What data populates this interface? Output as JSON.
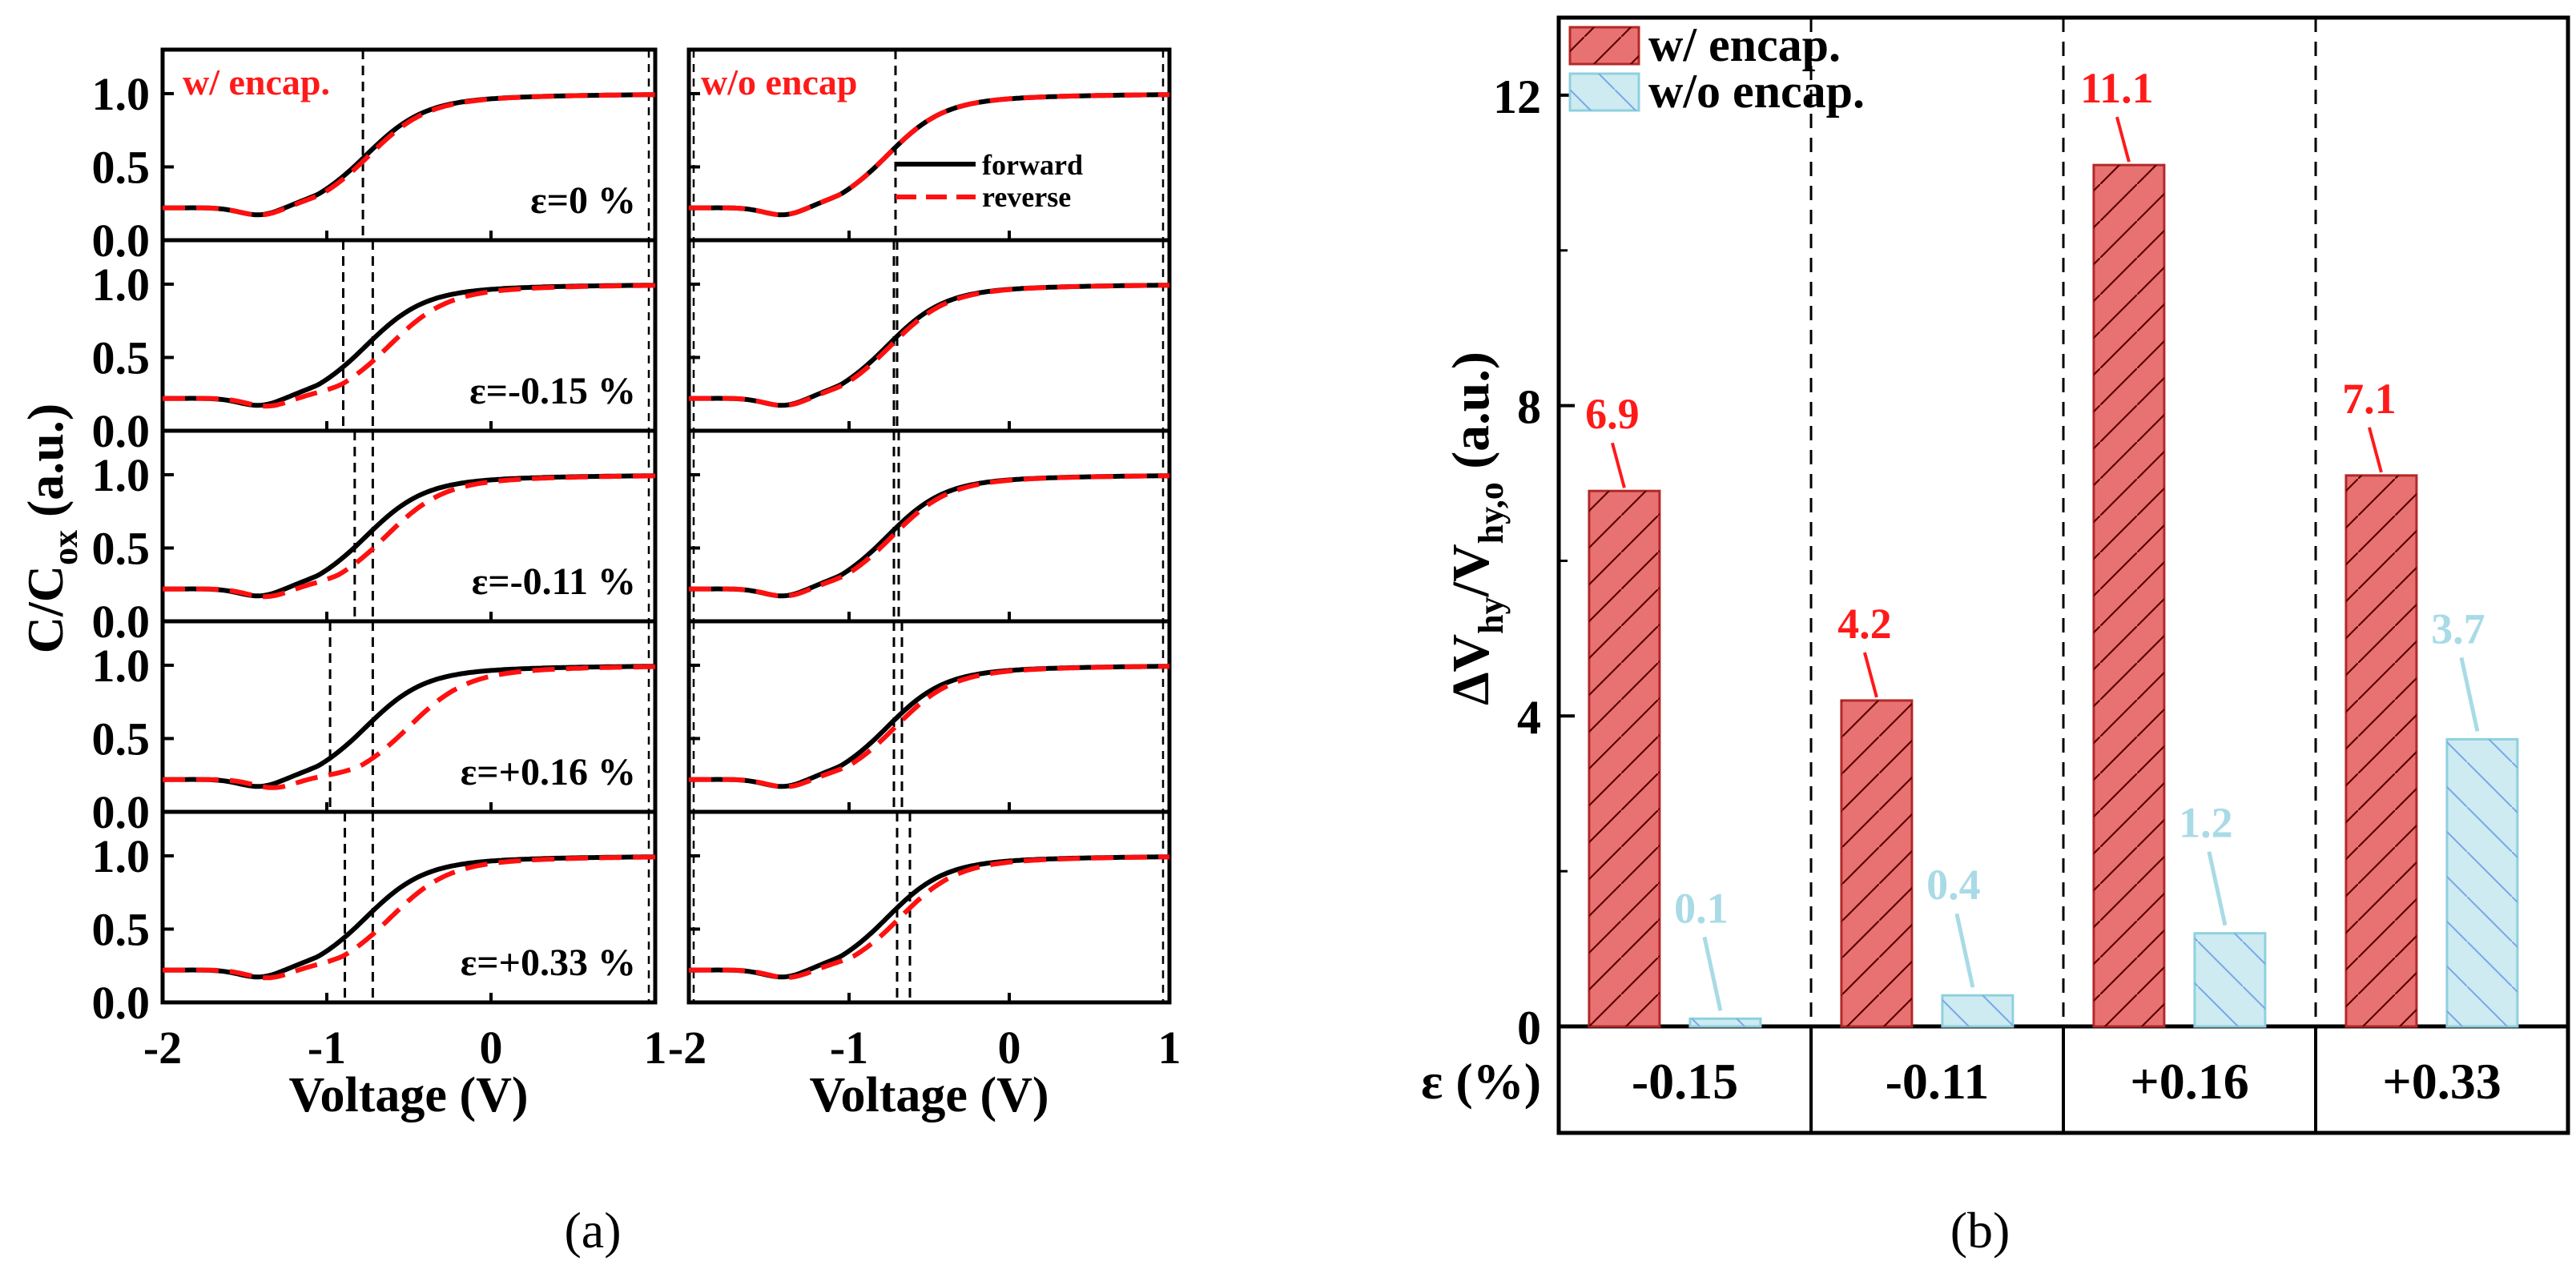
{
  "chart_data": [
    {
      "type": "line",
      "panel": "(a)",
      "ylabel": "C/C",
      "ylabel_sub": "ox",
      "ylabel_suffix": " (a.u.)",
      "xlabel": "Voltage (V)",
      "xlim": [
        -2,
        1
      ],
      "ylim": [
        0,
        1.3
      ],
      "xticks": [
        "-2",
        "-1",
        "0",
        "1"
      ],
      "xticks_right_first": "-2",
      "yticks": [
        "0.0",
        "0.5",
        "1.0"
      ],
      "column_titles": [
        "w/ encap.",
        "w/o encap"
      ],
      "legend": {
        "placement": "right",
        "entries": [
          "forward",
          "reverse"
        ]
      },
      "series_styles": {
        "forward": "#000000",
        "reverse": "#ff1010"
      },
      "rows": [
        {
          "strain_label": "ε=0 %",
          "vlines_encap": [
            -0.78,
            -0.78
          ],
          "vlines_noencap": [
            -0.71,
            -0.71
          ],
          "forward_shift_encap": 0.0,
          "reverse_shift_encap": 0.02,
          "forward_shift_noencap": 0.0,
          "reverse_shift_noencap": 0.0
        },
        {
          "strain_label": "ε=-0.15 %",
          "vlines_encap": [
            -0.9,
            -0.72
          ],
          "vlines_noencap": [
            -0.72,
            -0.7
          ],
          "forward_shift_encap": 0.0,
          "reverse_shift_encap": 0.14,
          "forward_shift_noencap": 0.0,
          "reverse_shift_noencap": 0.02
        },
        {
          "strain_label": "ε=-0.11 %",
          "vlines_encap": [
            -0.83,
            -0.72
          ],
          "vlines_noencap": [
            -0.72,
            -0.69
          ],
          "forward_shift_encap": 0.0,
          "reverse_shift_encap": 0.12,
          "forward_shift_noencap": 0.0,
          "reverse_shift_noencap": 0.03
        },
        {
          "strain_label": "ε=+0.16 %",
          "vlines_encap": [
            -0.98,
            -0.72
          ],
          "vlines_noencap": [
            -0.72,
            -0.67
          ],
          "forward_shift_encap": 0.0,
          "reverse_shift_encap": 0.26,
          "forward_shift_noencap": 0.0,
          "reverse_shift_noencap": 0.05
        },
        {
          "strain_label": "ε=+0.33 %",
          "vlines_encap": [
            -0.89,
            -0.72
          ],
          "vlines_noencap": [
            -0.7,
            -0.62
          ],
          "forward_shift_encap": 0.0,
          "reverse_shift_encap": 0.15,
          "forward_shift_noencap": 0.0,
          "reverse_shift_noencap": 0.08
        }
      ]
    },
    {
      "type": "bar",
      "panel": "(b)",
      "ylabel_parts": [
        "ΔV",
        "hy",
        "/V",
        "hy,o",
        " (a.u.)"
      ],
      "ylim": [
        0,
        13
      ],
      "yticks": [
        "0",
        "4",
        "8",
        "12"
      ],
      "xlabel": "ε (%)",
      "categories": [
        "-0.15",
        "-0.11",
        "+0.16",
        "+0.33"
      ],
      "series": [
        {
          "name": "w/ encap.",
          "values": [
            6.9,
            4.2,
            11.1,
            7.1
          ],
          "labels": [
            "6.9",
            "4.2",
            "11.1",
            "7.1"
          ],
          "color": "#e87272",
          "edge": "#b42828",
          "label_color": "#ff1a1a"
        },
        {
          "name": "w/o encap.",
          "values": [
            0.1,
            0.4,
            1.2,
            3.7
          ],
          "labels": [
            "0.1",
            "0.4",
            "1.2",
            "3.7"
          ],
          "color": "#cdebf1",
          "edge": "#8fd0de",
          "label_color": "#a8dbe6"
        }
      ]
    }
  ],
  "captions": {
    "a": "(a)",
    "b": "(b)"
  }
}
